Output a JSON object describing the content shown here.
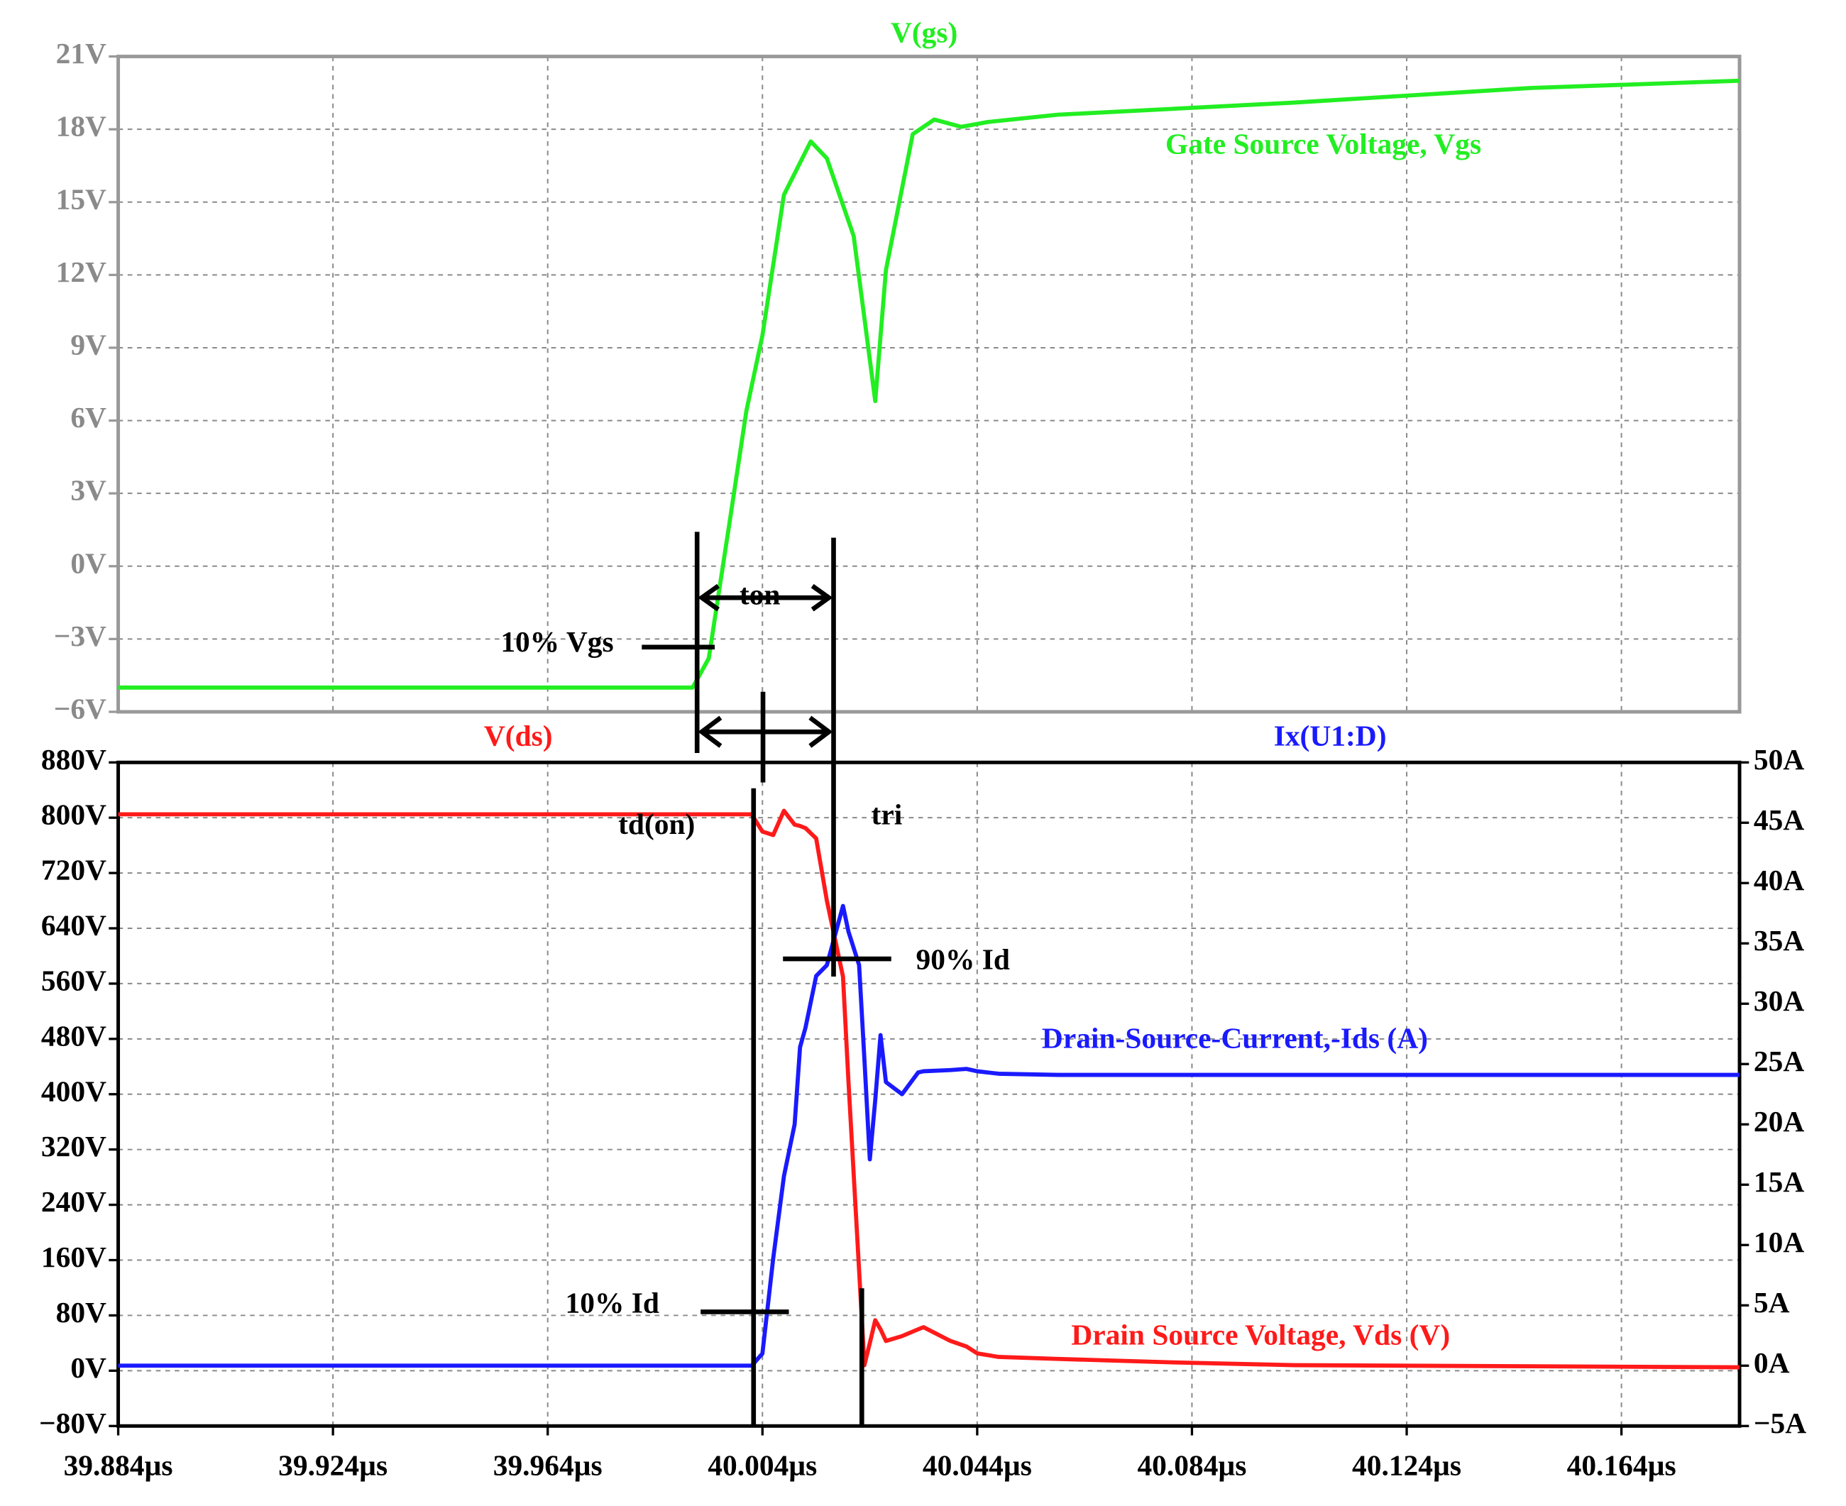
{
  "chart_data": [
    {
      "type": "line",
      "title": "V(gs)",
      "x": [
        39.884,
        39.991,
        39.994,
        39.998,
        40.001,
        40.004,
        40.008,
        40.013,
        40.016,
        40.021,
        40.025,
        40.027,
        40.032,
        40.036,
        40.041,
        40.046,
        40.059,
        40.103,
        40.147,
        40.186
      ],
      "series": [
        {
          "name": "Gate Source Voltage, Vgs",
          "color": "#22ee22",
          "values": [
            -5,
            -5,
            -3.8,
            2,
            6.4,
            9.5,
            15.3,
            17.5,
            16.8,
            13.6,
            6.8,
            12.2,
            17.8,
            18.4,
            18.1,
            18.3,
            18.6,
            19.1,
            19.7,
            20
          ]
        }
      ],
      "xlim": [
        39.884,
        40.186
      ],
      "ylim": [
        -6,
        21
      ],
      "yticks": [
        {
          "value": 21,
          "label": "21V"
        },
        {
          "value": 18,
          "label": "18V"
        },
        {
          "value": 15,
          "label": "15V"
        },
        {
          "value": 12,
          "label": "12V"
        },
        {
          "value": 9,
          "label": "9V"
        },
        {
          "value": 6,
          "label": "6V"
        },
        {
          "value": 3,
          "label": "3V"
        },
        {
          "value": 0,
          "label": "0V"
        },
        {
          "value": -3,
          "label": "−3V"
        },
        {
          "value": -6,
          "label": "−6V"
        }
      ],
      "grid": true,
      "annotations": [
        "10% Vgs",
        "ton"
      ]
    },
    {
      "type": "line",
      "x": [
        39.884,
        40.002,
        40.004,
        40.006,
        40.008,
        40.01,
        40.011,
        40.012,
        40.014,
        40.016,
        40.019,
        40.02,
        40.022,
        40.023,
        40.024,
        40.025,
        40.026,
        40.027,
        40.03,
        40.033,
        40.034,
        40.039,
        40.042,
        40.044,
        40.048,
        40.059,
        40.081,
        40.103,
        40.186
      ],
      "series": [
        {
          "name": "Drain Source Voltage, Vds (V)",
          "trace": "V(ds)",
          "color": "#ff1a1a",
          "values": [
            805,
            805,
            780,
            775,
            810,
            790,
            788,
            785,
            770,
            680,
            570,
            420,
            145,
            8,
            40,
            73,
            60,
            43,
            50,
            60,
            63,
            43,
            35,
            25,
            20,
            17,
            12,
            8,
            5
          ]
        },
        {
          "name": "Drain-Source-Current,-Ids (A)",
          "trace": "Ix(U1:D)",
          "color": "#1a1aff",
          "axis": "y2",
          "values": [
            0,
            0,
            1,
            8.9,
            15.7,
            20,
            26.4,
            28,
            32.3,
            33.2,
            38.1,
            36,
            33.2,
            25.4,
            17.1,
            22,
            27.4,
            23.5,
            22.5,
            24.3,
            24.4,
            24.5,
            24.6,
            24.4,
            24.2,
            24.1,
            24.1,
            24.1,
            24.1
          ]
        }
      ],
      "xlim": [
        39.884,
        40.186
      ],
      "xticks": [
        {
          "value": 39.884,
          "label": "39.884µs"
        },
        {
          "value": 39.924,
          "label": "39.924µs"
        },
        {
          "value": 39.964,
          "label": "39.964µs"
        },
        {
          "value": 40.004,
          "label": "40.004µs"
        },
        {
          "value": 40.044,
          "label": "40.044µs"
        },
        {
          "value": 40.084,
          "label": "40.084µs"
        },
        {
          "value": 40.124,
          "label": "40.124µs"
        },
        {
          "value": 40.164,
          "label": "40.164µs"
        }
      ],
      "ylim": [
        -80,
        880
      ],
      "yticks": [
        {
          "value": 880,
          "label": "880V"
        },
        {
          "value": 800,
          "label": "800V"
        },
        {
          "value": 720,
          "label": "720V"
        },
        {
          "value": 640,
          "label": "640V"
        },
        {
          "value": 560,
          "label": "560V"
        },
        {
          "value": 480,
          "label": "480V"
        },
        {
          "value": 400,
          "label": "400V"
        },
        {
          "value": 320,
          "label": "320V"
        },
        {
          "value": 240,
          "label": "240V"
        },
        {
          "value": 160,
          "label": "160V"
        },
        {
          "value": 80,
          "label": "80V"
        },
        {
          "value": 0,
          "label": "0V"
        },
        {
          "value": -80,
          "label": "−80V"
        }
      ],
      "y2lim": [
        -5,
        50
      ],
      "y2ticks": [
        {
          "value": 50,
          "label": "50A"
        },
        {
          "value": 45,
          "label": "45A"
        },
        {
          "value": 40,
          "label": "40A"
        },
        {
          "value": 35,
          "label": "35A"
        },
        {
          "value": 30,
          "label": "30A"
        },
        {
          "value": 25,
          "label": "25A"
        },
        {
          "value": 20,
          "label": "20A"
        },
        {
          "value": 15,
          "label": "15A"
        },
        {
          "value": 10,
          "label": "10A"
        },
        {
          "value": 5,
          "label": "5A"
        },
        {
          "value": 0,
          "label": "0A"
        },
        {
          "value": -5,
          "label": "−5A"
        }
      ],
      "grid": true,
      "annotations": [
        "td(on)",
        "tri",
        "90% Id",
        "10% Id"
      ]
    }
  ]
}
